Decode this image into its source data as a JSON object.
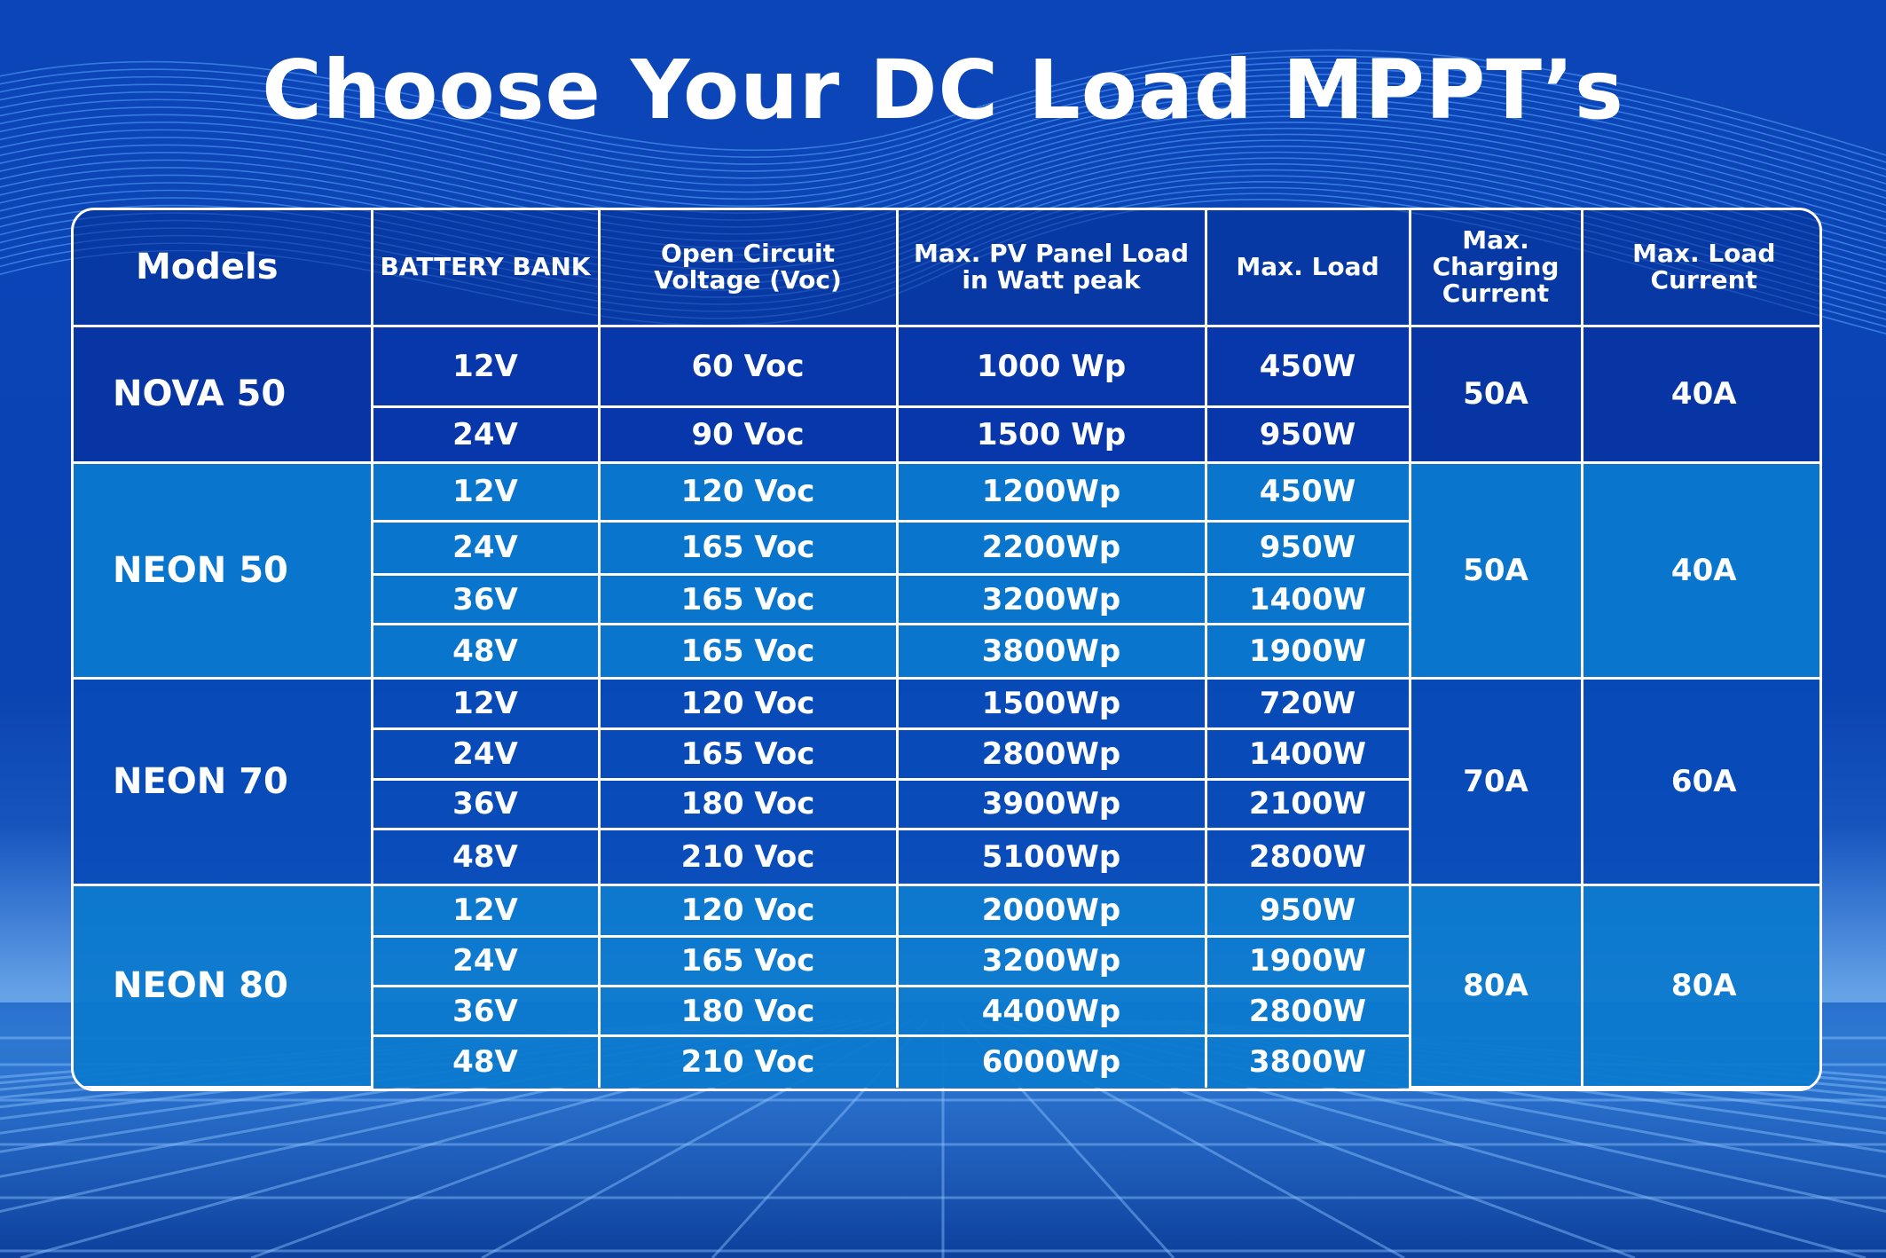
{
  "title": "Choose Your DC Load MPPT’s",
  "table": {
    "headers": {
      "models": "Models",
      "battery_bank": "BATTERY BANK",
      "voc": "Open Circuit Voltage (Voc)",
      "pv_load": "Max. PV Panel Load in Watt peak",
      "max_load": "Max. Load",
      "charging_current": "Max. Charging Current",
      "load_current": "Max. Load Current"
    },
    "groups": [
      {
        "model": "NOVA 50",
        "charging_current": "50A",
        "load_current": "40A",
        "rows": [
          {
            "battery": "12V",
            "voc": "60 Voc",
            "pv": "1000 Wp",
            "load": "450W"
          },
          {
            "battery": "24V",
            "voc": "90 Voc",
            "pv": "1500 Wp",
            "load": "950W"
          }
        ]
      },
      {
        "model": "NEON 50",
        "charging_current": "50A",
        "load_current": "40A",
        "rows": [
          {
            "battery": "12V",
            "voc": "120 Voc",
            "pv": "1200Wp",
            "load": "450W"
          },
          {
            "battery": "24V",
            "voc": "165 Voc",
            "pv": "2200Wp",
            "load": "950W"
          },
          {
            "battery": "36V",
            "voc": "165 Voc",
            "pv": "3200Wp",
            "load": "1400W"
          },
          {
            "battery": "48V",
            "voc": "165 Voc",
            "pv": "3800Wp",
            "load": "1900W"
          }
        ]
      },
      {
        "model": "NEON 70",
        "charging_current": "70A",
        "load_current": "60A",
        "rows": [
          {
            "battery": "12V",
            "voc": "120 Voc",
            "pv": "1500Wp",
            "load": "720W"
          },
          {
            "battery": "24V",
            "voc": "165 Voc",
            "pv": "2800Wp",
            "load": "1400W"
          },
          {
            "battery": "36V",
            "voc": "180 Voc",
            "pv": "3900Wp",
            "load": "2100W"
          },
          {
            "battery": "48V",
            "voc": "210 Voc",
            "pv": "5100Wp",
            "load": "2800W"
          }
        ]
      },
      {
        "model": "NEON 80",
        "charging_current": "80A",
        "load_current": "80A",
        "rows": [
          {
            "battery": "12V",
            "voc": "120 Voc",
            "pv": "2000Wp",
            "load": "950W"
          },
          {
            "battery": "24V",
            "voc": "165 Voc",
            "pv": "3200Wp",
            "load": "1900W"
          },
          {
            "battery": "36V",
            "voc": "180 Voc",
            "pv": "4400Wp",
            "load": "2800W"
          },
          {
            "battery": "48V",
            "voc": "210 Voc",
            "pv": "6000Wp",
            "load": "3800W"
          }
        ]
      }
    ]
  }
}
